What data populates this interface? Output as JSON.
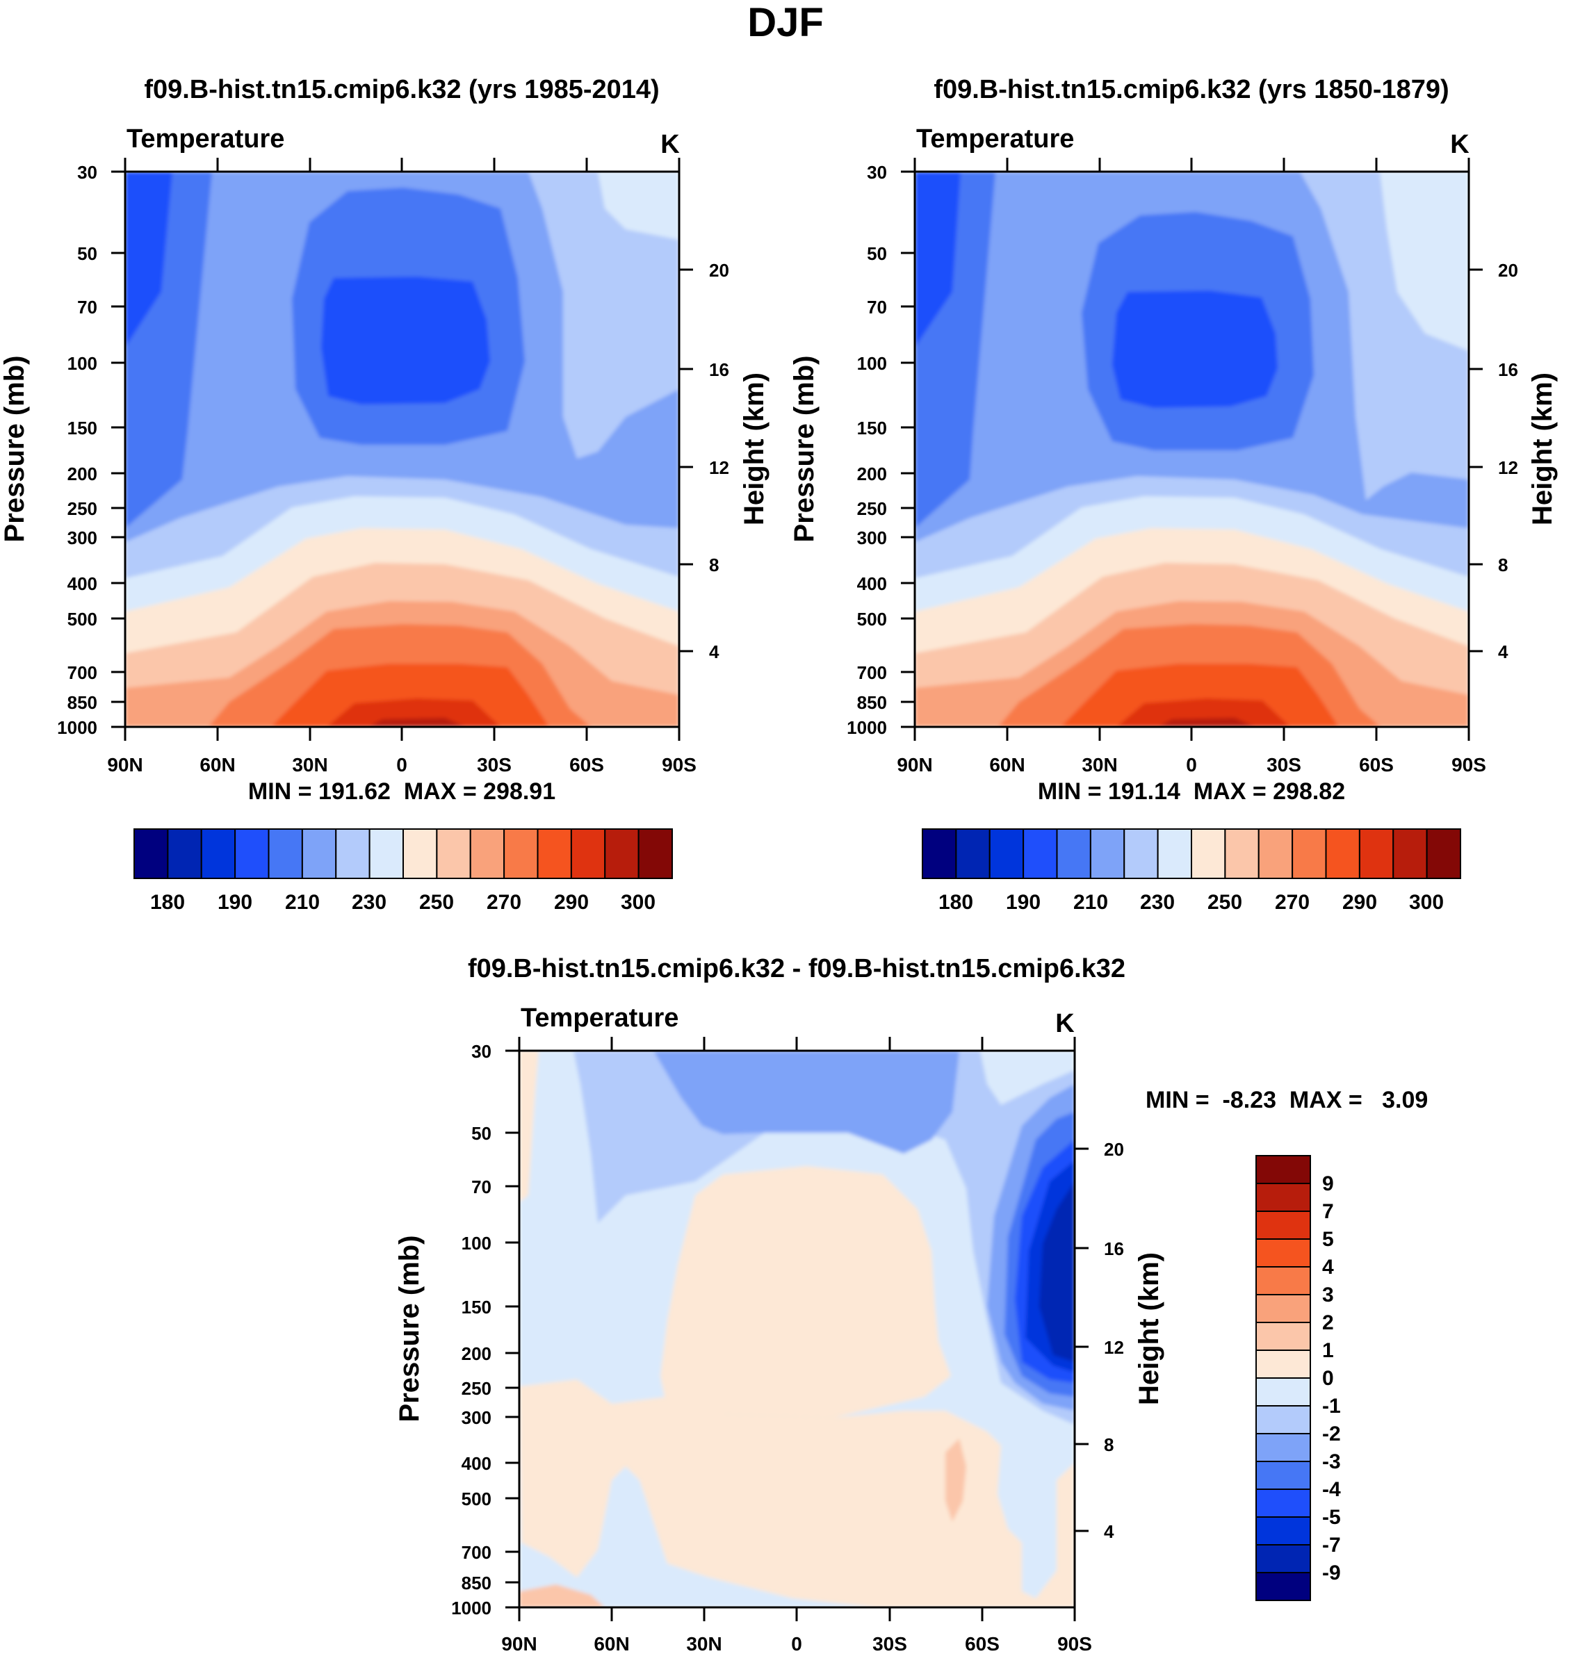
{
  "figure": {
    "title": "DJF"
  },
  "panels": [
    {
      "subtitle": "f09.B-hist.tn15.cmip6.k32 (yrs 1985-2014)",
      "left_label": "Temperature",
      "units": "K",
      "stats": "MIN = 191.62  MAX = 298.91"
    },
    {
      "subtitle": "f09.B-hist.tn15.cmip6.k32 (yrs 1850-1879)",
      "left_label": "Temperature",
      "units": "K",
      "stats": "MIN = 191.14  MAX = 298.82"
    },
    {
      "subtitle": "f09.B-hist.tn15.cmip6.k32 - f09.B-hist.tn15.cmip6.k32",
      "left_label": "Temperature",
      "units": "K",
      "stats": "MIN =  -8.23  MAX =   3.09"
    }
  ],
  "colors": {
    "palette": [
      "#00007f",
      "#0025b3",
      "#0035dc",
      "#1f4ffb",
      "#4677f5",
      "#7ea3f8",
      "#b3cbfb",
      "#daeafc",
      "#fde8d6",
      "#fbc6aa",
      "#f9a27b",
      "#f87a48",
      "#f5541f",
      "#df3310",
      "#b71d0c",
      "#830806"
    ],
    "diff_palette": [
      "#00007f",
      "#0025b3",
      "#0035dc",
      "#1f4ffb",
      "#4677f5",
      "#7ea3f8",
      "#b3cbfb",
      "#daeafc",
      "#fde8d6",
      "#fbc6aa",
      "#f9a27b",
      "#f87a48",
      "#f5541f",
      "#df3310",
      "#b71d0c",
      "#830806"
    ],
    "border": "#000000"
  },
  "chart_data": [
    {
      "type": "contour",
      "title": "f09.B-hist.tn15.cmip6.k32 (yrs 1985-2014)",
      "variable": "Temperature",
      "units": "K",
      "xlabel": "",
      "ylabel": "Pressure (mb)",
      "y2label": "Height (km)",
      "x_ticks": [
        "90N",
        "60N",
        "30N",
        "0",
        "30S",
        "60S",
        "90S"
      ],
      "y_ticks": [
        30,
        50,
        70,
        100,
        150,
        200,
        250,
        300,
        400,
        500,
        700,
        850,
        1000
      ],
      "y2_ticks": [
        20,
        16,
        12,
        8,
        4
      ],
      "colorbar_labels": [
        "180",
        "190",
        "210",
        "230",
        "250",
        "270",
        "290",
        "300"
      ],
      "min": 191.62,
      "max": 298.91
    },
    {
      "type": "contour",
      "title": "f09.B-hist.tn15.cmip6.k32 (yrs 1850-1879)",
      "variable": "Temperature",
      "units": "K",
      "xlabel": "",
      "ylabel": "Pressure (mb)",
      "y2label": "Height (km)",
      "x_ticks": [
        "90N",
        "60N",
        "30N",
        "0",
        "30S",
        "60S",
        "90S"
      ],
      "y_ticks": [
        30,
        50,
        70,
        100,
        150,
        200,
        250,
        300,
        400,
        500,
        700,
        850,
        1000
      ],
      "y2_ticks": [
        20,
        16,
        12,
        8,
        4
      ],
      "colorbar_labels": [
        "180",
        "190",
        "210",
        "230",
        "250",
        "270",
        "290",
        "300"
      ],
      "min": 191.14,
      "max": 298.82
    },
    {
      "type": "contour",
      "title": "f09.B-hist.tn15.cmip6.k32 - f09.B-hist.tn15.cmip6.k32",
      "variable": "Temperature",
      "units": "K",
      "xlabel": "",
      "ylabel": "Pressure (mb)",
      "y2label": "Height (km)",
      "x_ticks": [
        "90N",
        "60N",
        "30N",
        "0",
        "30S",
        "60S",
        "90S"
      ],
      "y_ticks": [
        30,
        50,
        70,
        100,
        150,
        200,
        250,
        300,
        400,
        500,
        700,
        850,
        1000
      ],
      "y2_ticks": [
        20,
        16,
        12,
        8,
        4
      ],
      "colorbar_labels": [
        "9",
        "7",
        "5",
        "4",
        "3",
        "2",
        "1",
        "0",
        "-1",
        "-2",
        "-3",
        "-4",
        "-5",
        "-7",
        "-9"
      ],
      "min": -8.23,
      "max": 3.09
    }
  ]
}
